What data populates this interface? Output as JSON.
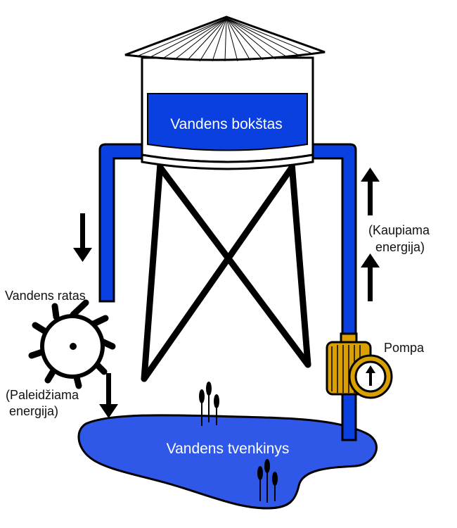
{
  "tower_label": "Vandens bokštas",
  "pond_label": "Vandens tvenkinys",
  "wheel_label": "Vandens ratas",
  "wheel_energy_label": [
    "(Paleidžiama",
    "energija)"
  ],
  "pump_label": "Pompa",
  "pump_energy_label": [
    "(Kaupiama",
    "energija)"
  ],
  "colors": {
    "water": "#0a3fe0",
    "pond": "#2f58e8",
    "pump_body": "#d9a000",
    "outline": "#000000"
  },
  "icons": [
    "down-arrow-icon",
    "up-arrow-icon",
    "water-wheel-icon",
    "pump-icon",
    "cattail-icon"
  ]
}
